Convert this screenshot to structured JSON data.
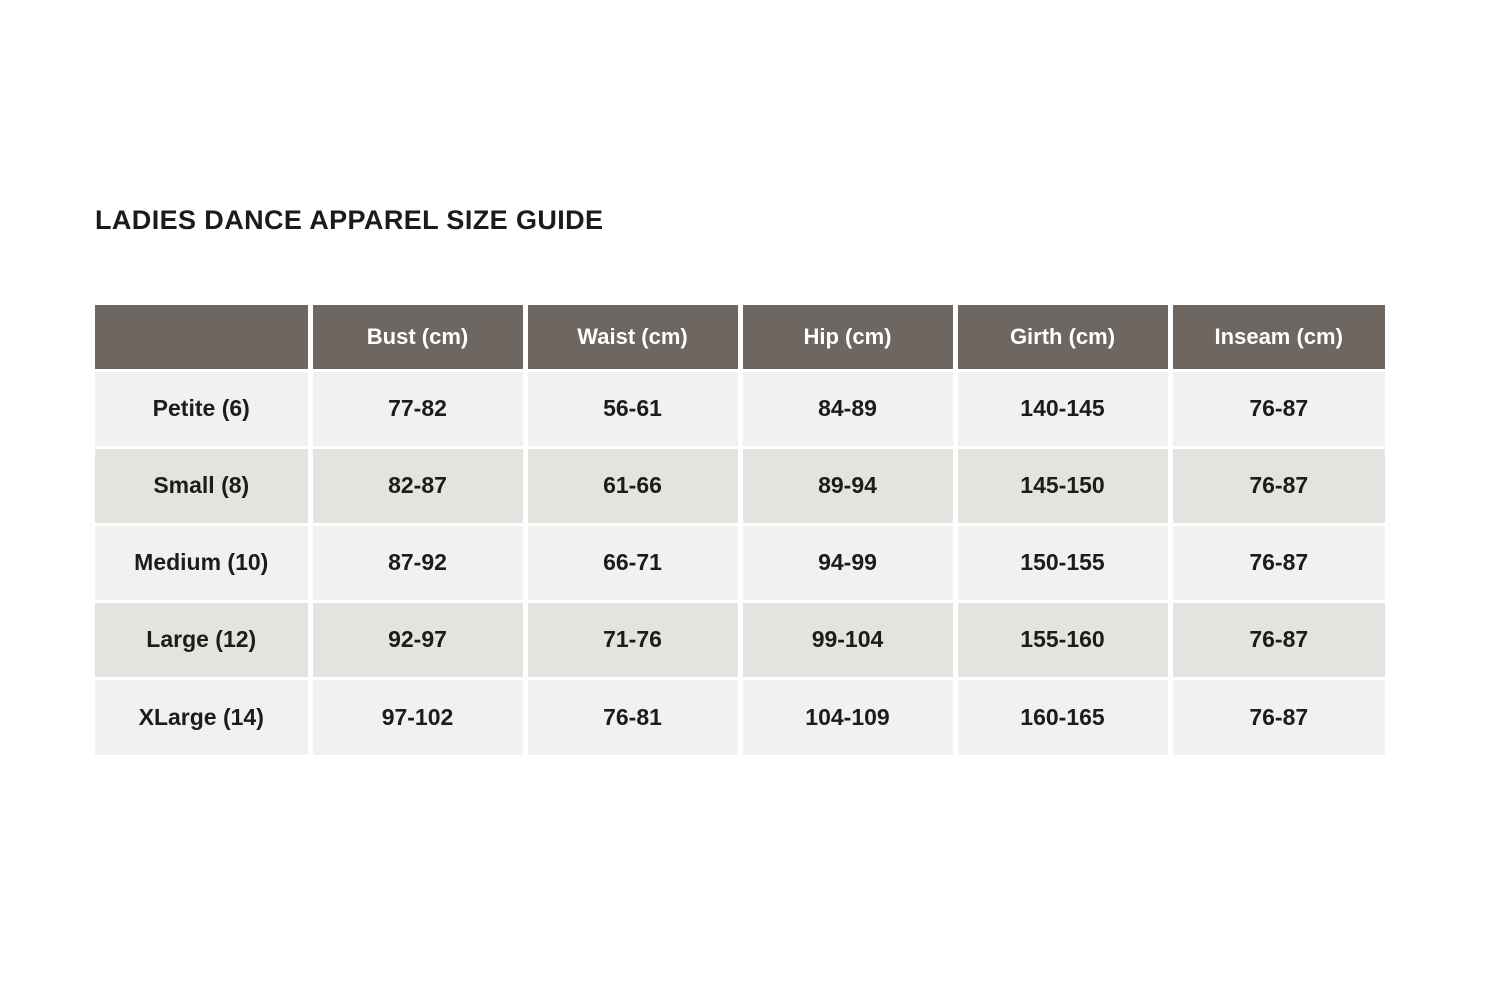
{
  "page": {
    "title": "LADIES DANCE APPAREL SIZE GUIDE"
  },
  "colors": {
    "page_bg": "#ffffff",
    "header_bg": "#6e6661",
    "header_text": "#ffffff",
    "row_light": "#f2f1ef",
    "row_dark": "#e5e3e0",
    "body_text": "#1d1c1b",
    "title_text": "#1c1b1a"
  },
  "table": {
    "columns": [
      "",
      "Bust (cm)",
      "Waist (cm)",
      "Hip (cm)",
      "Girth (cm)",
      "Inseam (cm)"
    ],
    "rows": [
      [
        "Petite (6)",
        "77-82",
        "56-61",
        "84-89",
        "140-145",
        "76-87"
      ],
      [
        "Small (8)",
        "82-87",
        "61-66",
        "89-94",
        "145-150",
        "76-87"
      ],
      [
        "Medium (10)",
        "87-92",
        "66-71",
        "94-99",
        "150-155",
        "76-87"
      ],
      [
        "Large (12)",
        "92-97",
        "71-76",
        "99-104",
        "155-160",
        "76-87"
      ],
      [
        "XLarge (14)",
        "97-102",
        "76-81",
        "104-109",
        "160-165",
        "76-87"
      ]
    ]
  },
  "chart_data": {
    "type": "table",
    "title": "LADIES DANCE APPAREL SIZE GUIDE",
    "columns": [
      "",
      "Bust (cm)",
      "Waist (cm)",
      "Hip (cm)",
      "Girth (cm)",
      "Inseam (cm)"
    ],
    "rows": [
      [
        "Petite (6)",
        "77-82",
        "56-61",
        "84-89",
        "140-145",
        "76-87"
      ],
      [
        "Small (8)",
        "82-87",
        "61-66",
        "89-94",
        "145-150",
        "76-87"
      ],
      [
        "Medium (10)",
        "87-92",
        "66-71",
        "94-99",
        "150-155",
        "76-87"
      ],
      [
        "Large (12)",
        "92-97",
        "71-76",
        "99-104",
        "155-160",
        "76-87"
      ],
      [
        "XLarge (14)",
        "97-102",
        "76-81",
        "104-109",
        "160-165",
        "76-87"
      ]
    ],
    "layout_hints": {
      "header_background": "#6e6661",
      "alternating_row_colors": [
        "#f2f1ef",
        "#e5e3e0"
      ],
      "all_text_bold": true,
      "cell_alignment": "center"
    }
  }
}
